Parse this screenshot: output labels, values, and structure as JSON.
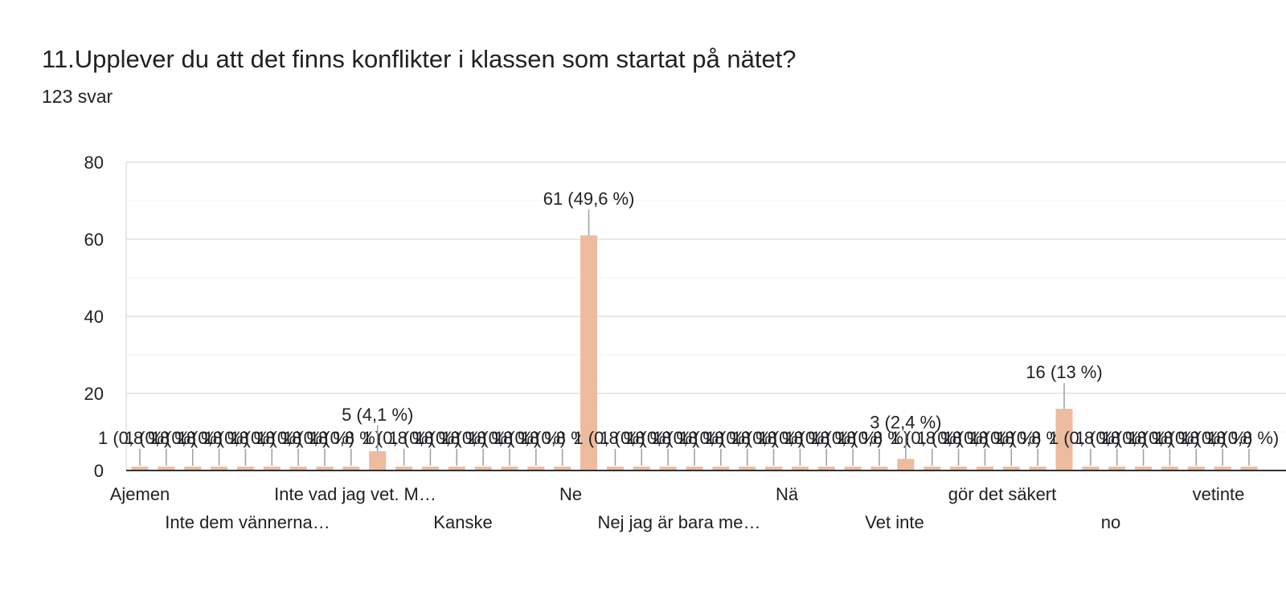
{
  "question": {
    "title": "11.Upplever du att det finns konflikter i klassen som startat på nätet?",
    "responses": "123 svar"
  },
  "colors": {
    "bar": "#edbb9e",
    "grid": "#e8e8e8",
    "axis": "#333333",
    "leader": "#9e9e9e",
    "text": "#202124"
  },
  "chart_data": {
    "type": "bar",
    "ylim": [
      0,
      80
    ],
    "yticks": [
      0,
      20,
      40,
      60,
      80
    ],
    "grid": true,
    "visible_category_labels": [
      "Ajemen",
      "Inte dem vännerna…",
      "Inte vad jag vet. M…",
      "Kanske",
      "Ne",
      "Nej jag är bara me…",
      "Nä",
      "Vet inte",
      "gör det säkert",
      "no",
      "vetinte"
    ],
    "values": [
      1,
      1,
      1,
      1,
      1,
      1,
      1,
      1,
      1,
      5,
      1,
      1,
      1,
      1,
      1,
      1,
      1,
      61,
      1,
      1,
      1,
      1,
      1,
      1,
      1,
      1,
      1,
      1,
      1,
      3,
      1,
      1,
      1,
      1,
      1,
      16,
      1,
      1,
      1,
      1,
      1,
      1,
      1
    ],
    "data_labels": [
      "1 (0,8 %)",
      "1 (0,8 %)",
      "1 (0,8 %)",
      "1 (0,8 %)",
      "1 (0,8 %)",
      "1 (0,8 %)",
      "1 (0,8 %)",
      "1 (0,8 %)",
      "1 (0,8 %)",
      "5 (4,1 %)",
      "1 (0,8 %)",
      "1 (0,8 %)",
      "1 (0,8 %)",
      "1 (0,8 %)",
      "1 (0,8 %)",
      "1 (0,8 %)",
      "1 (0,8 %)",
      "61 (49,6 %)",
      "1 (0,8 %)",
      "1 (0,8 %)",
      "1 (0,8 %)",
      "1 (0,8 %)",
      "1 (0,8 %)",
      "1 (0,8 %)",
      "1 (0,8 %)",
      "1 (0,8 %)",
      "1 (0,8 %)",
      "1 (0,8 %)",
      "1 (0,8 %)",
      "3 (2,4 %)",
      "1 (0,8 %)",
      "1 (0,8 %)",
      "1 (0,8 %)",
      "1 (0,8 %)",
      "1 (0,8 %)",
      "16 (13 %)",
      "1 (0,8 %)",
      "1 (0,8 %)",
      "1 (0,8 %)",
      "1 (0,8 %)",
      "1 (0,8 %)",
      "1 (0,8 %)",
      "1 (0,8 %)"
    ]
  }
}
